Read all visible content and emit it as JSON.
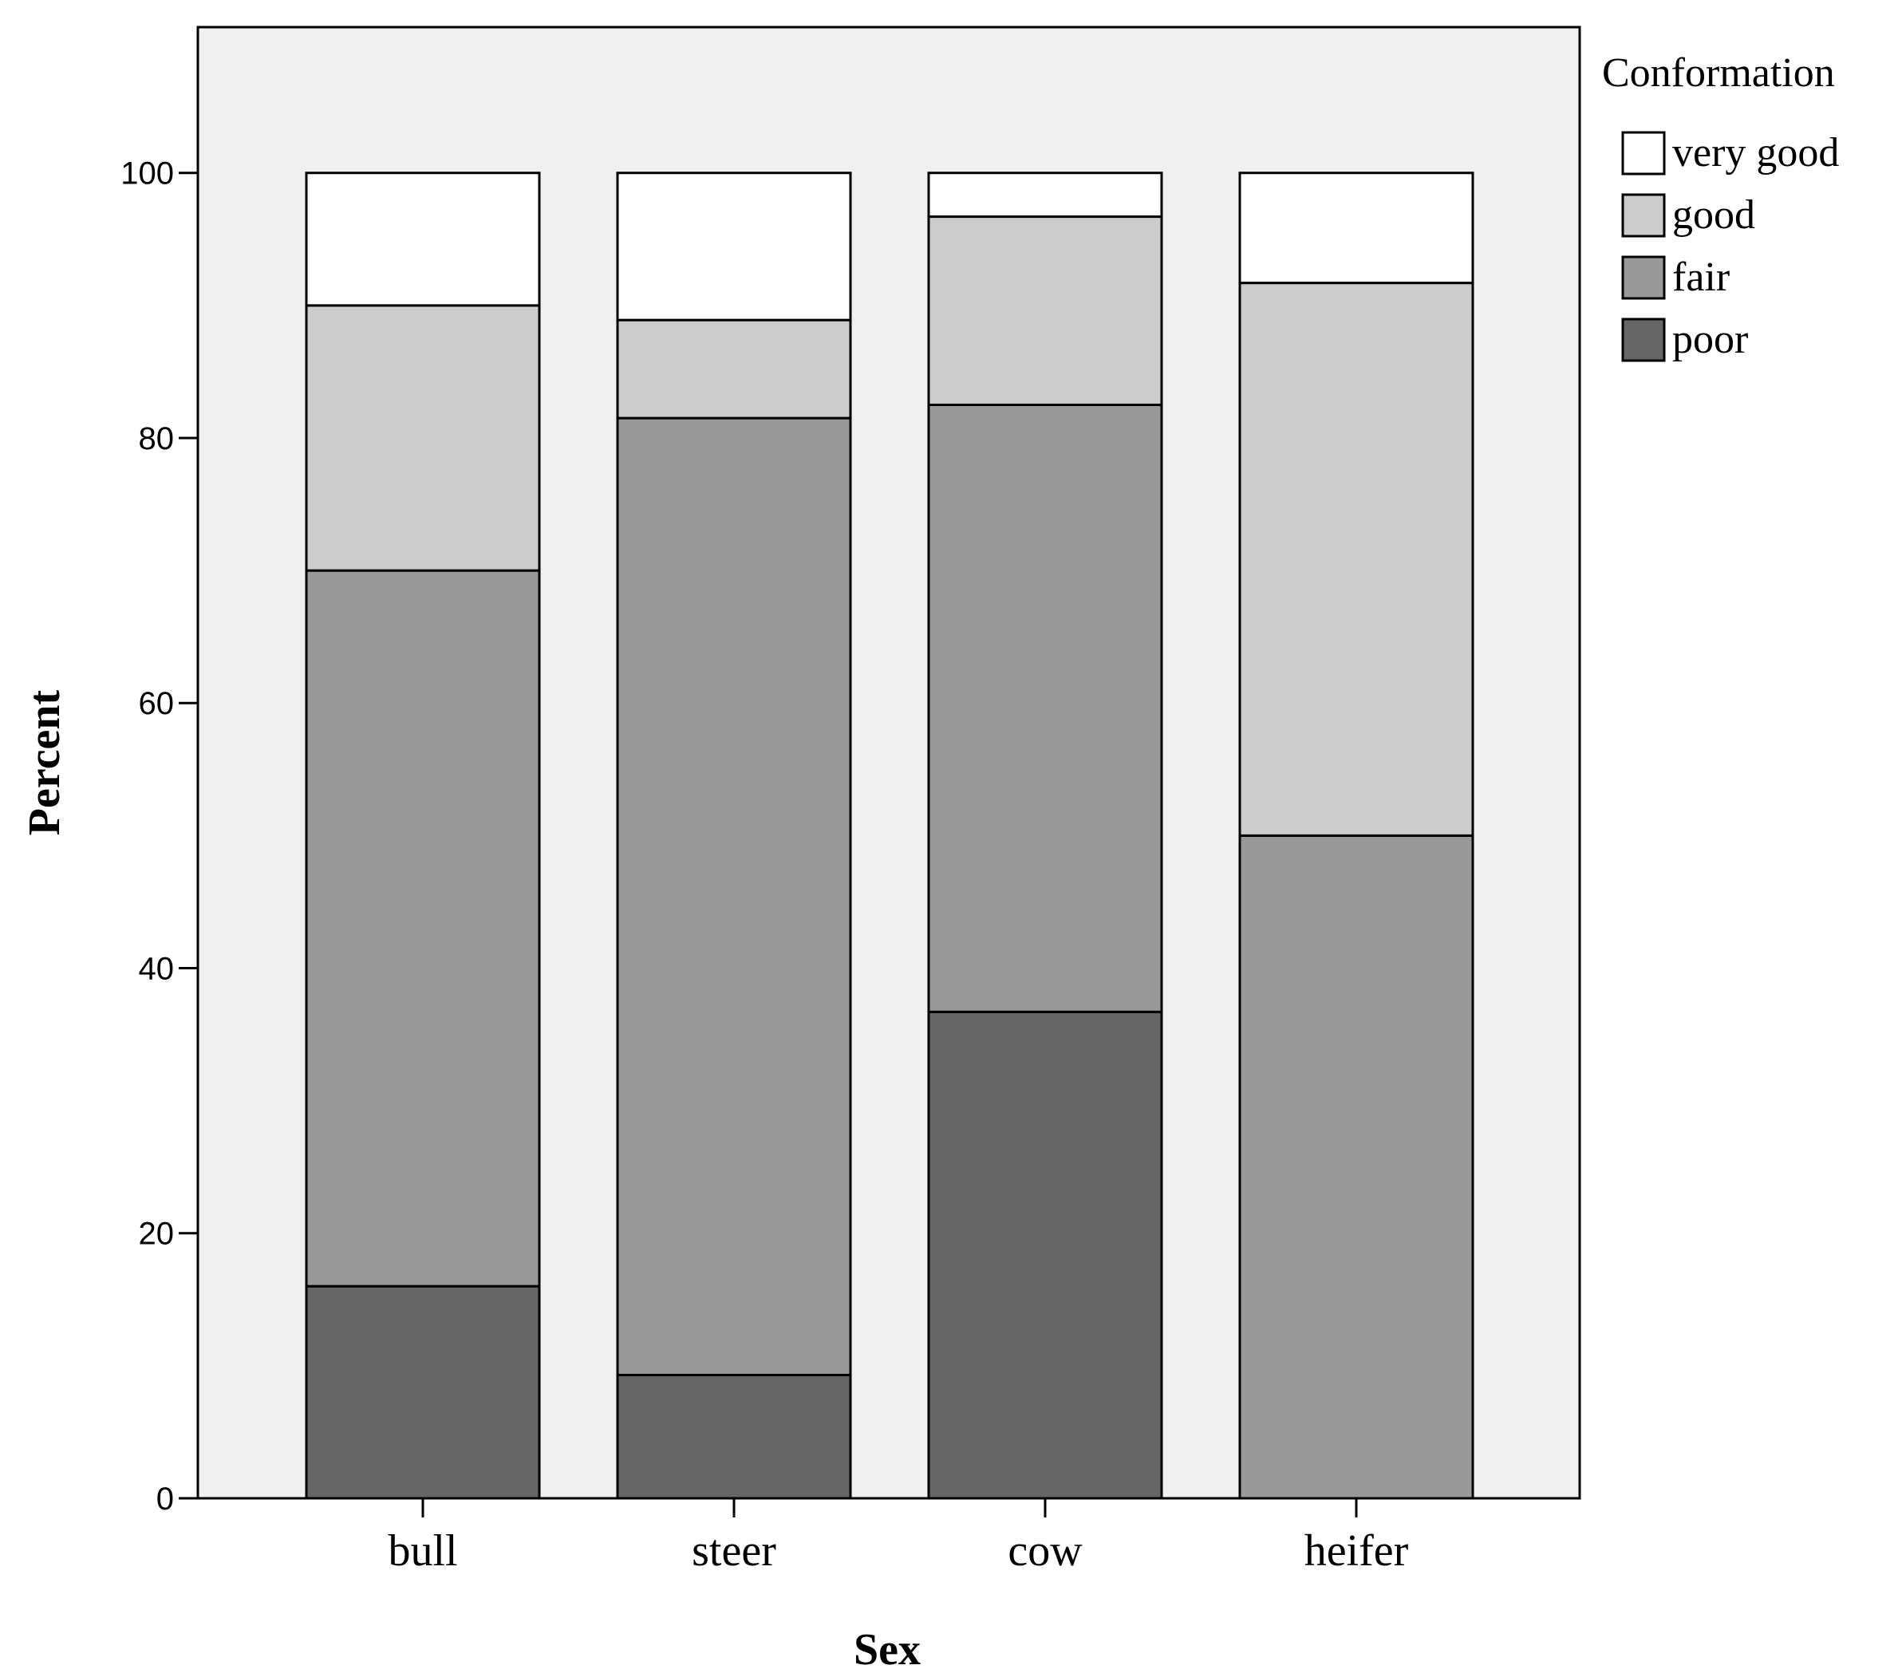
{
  "chart_data": {
    "type": "bar",
    "stacked": true,
    "categories": [
      "bull",
      "steer",
      "cow",
      "heifer"
    ],
    "series": [
      {
        "name": "poor",
        "values": [
          16,
          9.3,
          36.7,
          0
        ],
        "color": "#666666"
      },
      {
        "name": "fair",
        "values": [
          54,
          72.2,
          45.8,
          50
        ],
        "color": "#999999"
      },
      {
        "name": "good",
        "values": [
          20,
          7.4,
          14.2,
          41.7
        ],
        "color": "#cccccc"
      },
      {
        "name": "very good",
        "values": [
          10,
          11.1,
          3.3,
          8.3
        ],
        "color": "#ffffff"
      }
    ],
    "xlabel": "Sex",
    "ylabel": "Percent",
    "ylim": [
      0,
      111
    ],
    "yticks": [
      0,
      20,
      40,
      60,
      80,
      100
    ],
    "legend_title": "Conformation",
    "legend_position": "top-right",
    "legend_order": [
      "very good",
      "good",
      "fair",
      "poor"
    ],
    "plot_background": "#f0f0f0",
    "grid": false
  }
}
